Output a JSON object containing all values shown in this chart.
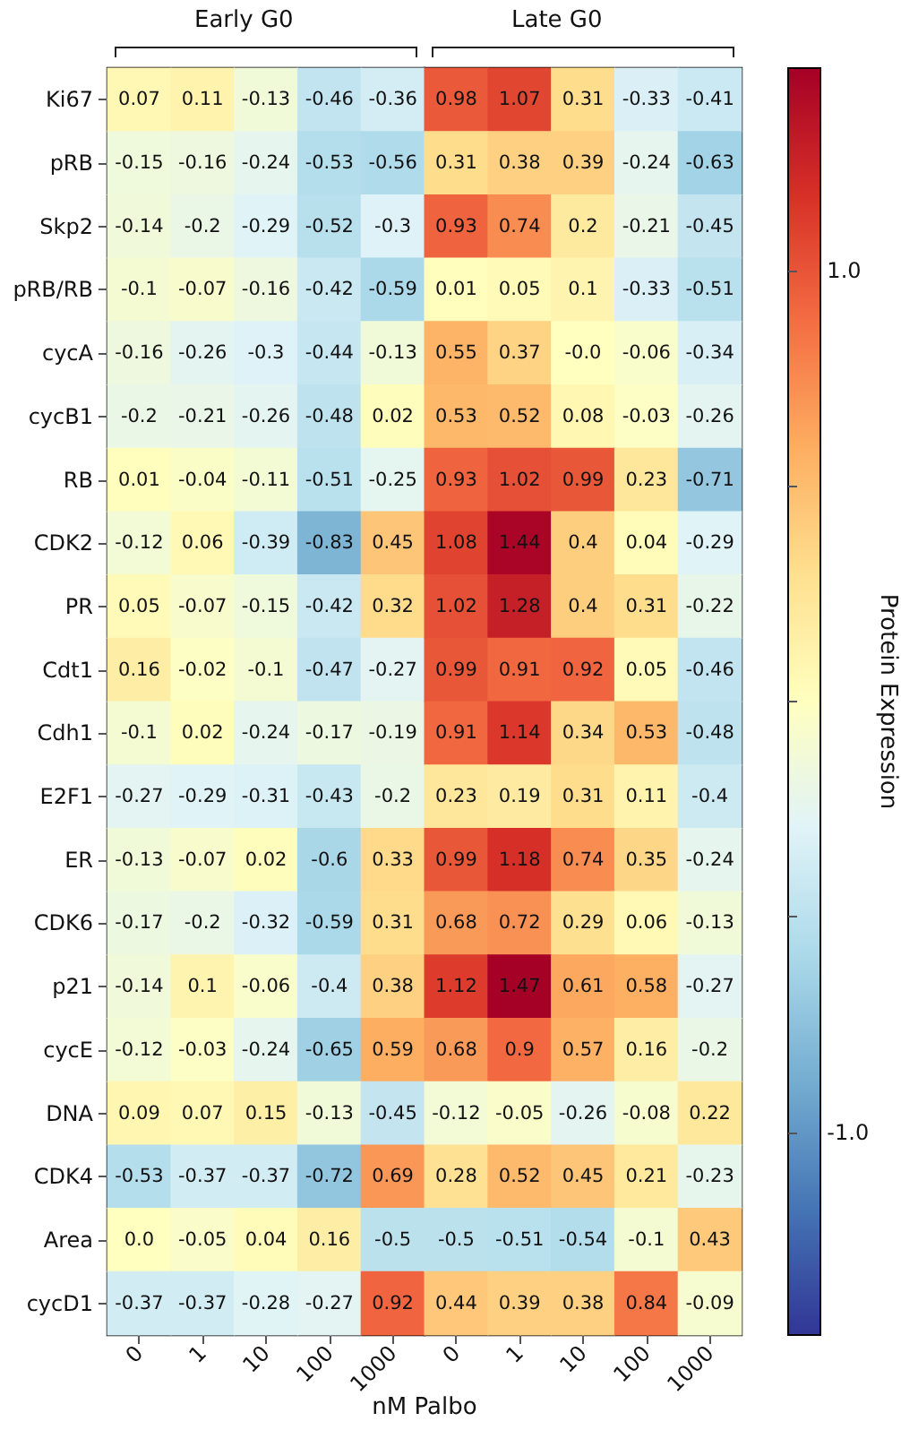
{
  "chart_data": {
    "type": "heatmap",
    "xlabel": "nM Palbo",
    "clabel": "Protein Expression",
    "annotations": [
      "Early G0",
      "Late G0"
    ],
    "categories": [
      "0",
      "1",
      "10",
      "100",
      "1000",
      "0",
      "1",
      "10",
      "100",
      "1000"
    ],
    "y_categories": [
      "Ki67",
      "pRB",
      "Skp2",
      "pRB/RB",
      "cycA",
      "cycB1",
      "RB",
      "CDK2",
      "PR",
      "Cdt1",
      "Cdh1",
      "E2F1",
      "ER",
      "CDK6",
      "p21",
      "cycE",
      "DNA",
      "CDK4",
      "Area",
      "cycD1"
    ],
    "cells": [
      [
        0.07,
        0.11,
        -0.13,
        -0.46,
        -0.36,
        0.98,
        1.07,
        0.31,
        -0.33,
        -0.41
      ],
      [
        -0.15,
        -0.16,
        -0.24,
        -0.53,
        -0.56,
        0.31,
        0.38,
        0.39,
        -0.24,
        -0.63
      ],
      [
        -0.14,
        -0.2,
        -0.29,
        -0.52,
        -0.3,
        0.93,
        0.74,
        0.2,
        -0.21,
        -0.45
      ],
      [
        -0.1,
        -0.07,
        -0.16,
        -0.42,
        -0.59,
        0.01,
        0.05,
        0.1,
        -0.33,
        -0.51
      ],
      [
        -0.16,
        -0.26,
        -0.3,
        -0.44,
        -0.13,
        0.55,
        0.37,
        0.0,
        -0.06,
        -0.34
      ],
      [
        -0.2,
        -0.21,
        -0.26,
        -0.48,
        0.02,
        0.53,
        0.52,
        0.08,
        -0.03,
        -0.26
      ],
      [
        0.01,
        -0.04,
        -0.11,
        -0.51,
        -0.25,
        0.93,
        1.02,
        0.99,
        0.23,
        -0.71
      ],
      [
        -0.12,
        0.06,
        -0.39,
        -0.83,
        0.45,
        1.08,
        1.44,
        0.4,
        0.04,
        -0.29
      ],
      [
        0.05,
        -0.07,
        -0.15,
        -0.42,
        0.32,
        1.02,
        1.28,
        0.4,
        0.31,
        -0.22
      ],
      [
        0.16,
        -0.02,
        -0.1,
        -0.47,
        -0.27,
        0.99,
        0.91,
        0.92,
        0.05,
        -0.46
      ],
      [
        -0.1,
        0.02,
        -0.24,
        -0.17,
        -0.19,
        0.91,
        1.14,
        0.34,
        0.53,
        -0.48
      ],
      [
        -0.27,
        -0.29,
        -0.31,
        -0.43,
        -0.2,
        0.23,
        0.19,
        0.31,
        0.11,
        -0.4
      ],
      [
        -0.13,
        -0.07,
        0.02,
        -0.6,
        0.33,
        0.99,
        1.18,
        0.74,
        0.35,
        -0.24
      ],
      [
        -0.17,
        -0.2,
        -0.32,
        -0.59,
        0.31,
        0.68,
        0.72,
        0.29,
        0.06,
        -0.13
      ],
      [
        -0.14,
        0.1,
        -0.06,
        -0.4,
        0.38,
        1.12,
        1.47,
        0.61,
        0.58,
        -0.27
      ],
      [
        -0.12,
        -0.03,
        -0.24,
        -0.65,
        0.59,
        0.68,
        0.9,
        0.57,
        0.16,
        -0.2
      ],
      [
        0.09,
        0.07,
        0.15,
        -0.13,
        -0.45,
        -0.12,
        -0.05,
        -0.26,
        -0.08,
        0.22
      ],
      [
        -0.53,
        -0.37,
        -0.37,
        -0.72,
        0.69,
        0.28,
        0.52,
        0.45,
        0.21,
        -0.23
      ],
      [
        0.0,
        -0.05,
        0.04,
        0.16,
        -0.5,
        -0.5,
        -0.51,
        -0.54,
        -0.1,
        0.43
      ],
      [
        -0.37,
        -0.37,
        -0.28,
        -0.27,
        0.92,
        0.44,
        0.39,
        0.38,
        0.84,
        -0.09
      ]
    ],
    "cell_labels": [
      [
        "0.07",
        "0.11",
        "-0.13",
        "-0.46",
        "-0.36",
        "0.98",
        "1.07",
        "0.31",
        "-0.33",
        "-0.41"
      ],
      [
        "-0.15",
        "-0.16",
        "-0.24",
        "-0.53",
        "-0.56",
        "0.31",
        "0.38",
        "0.39",
        "-0.24",
        "-0.63"
      ],
      [
        "-0.14",
        "-0.2",
        "-0.29",
        "-0.52",
        "-0.3",
        "0.93",
        "0.74",
        "0.2",
        "-0.21",
        "-0.45"
      ],
      [
        "-0.1",
        "-0.07",
        "-0.16",
        "-0.42",
        "-0.59",
        "0.01",
        "0.05",
        "0.1",
        "-0.33",
        "-0.51"
      ],
      [
        "-0.16",
        "-0.26",
        "-0.3",
        "-0.44",
        "-0.13",
        "0.55",
        "0.37",
        "-0.0",
        "-0.06",
        "-0.34"
      ],
      [
        "-0.2",
        "-0.21",
        "-0.26",
        "-0.48",
        "0.02",
        "0.53",
        "0.52",
        "0.08",
        "-0.03",
        "-0.26"
      ],
      [
        "0.01",
        "-0.04",
        "-0.11",
        "-0.51",
        "-0.25",
        "0.93",
        "1.02",
        "0.99",
        "0.23",
        "-0.71"
      ],
      [
        "-0.12",
        "0.06",
        "-0.39",
        "-0.83",
        "0.45",
        "1.08",
        "1.44",
        "0.4",
        "0.04",
        "-0.29"
      ],
      [
        "0.05",
        "-0.07",
        "-0.15",
        "-0.42",
        "0.32",
        "1.02",
        "1.28",
        "0.4",
        "0.31",
        "-0.22"
      ],
      [
        "0.16",
        "-0.02",
        "-0.1",
        "-0.47",
        "-0.27",
        "0.99",
        "0.91",
        "0.92",
        "0.05",
        "-0.46"
      ],
      [
        "-0.1",
        "0.02",
        "-0.24",
        "-0.17",
        "-0.19",
        "0.91",
        "1.14",
        "0.34",
        "0.53",
        "-0.48"
      ],
      [
        "-0.27",
        "-0.29",
        "-0.31",
        "-0.43",
        "-0.2",
        "0.23",
        "0.19",
        "0.31",
        "0.11",
        "-0.4"
      ],
      [
        "-0.13",
        "-0.07",
        "0.02",
        "-0.6",
        "0.33",
        "0.99",
        "1.18",
        "0.74",
        "0.35",
        "-0.24"
      ],
      [
        "-0.17",
        "-0.2",
        "-0.32",
        "-0.59",
        "0.31",
        "0.68",
        "0.72",
        "0.29",
        "0.06",
        "-0.13"
      ],
      [
        "-0.14",
        "0.1",
        "-0.06",
        "-0.4",
        "0.38",
        "1.12",
        "1.47",
        "0.61",
        "0.58",
        "-0.27"
      ],
      [
        "-0.12",
        "-0.03",
        "-0.24",
        "-0.65",
        "0.59",
        "0.68",
        "0.9",
        "0.57",
        "0.16",
        "-0.2"
      ],
      [
        "0.09",
        "0.07",
        "0.15",
        "-0.13",
        "-0.45",
        "-0.12",
        "-0.05",
        "-0.26",
        "-0.08",
        "0.22"
      ],
      [
        "-0.53",
        "-0.37",
        "-0.37",
        "-0.72",
        "0.69",
        "0.28",
        "0.52",
        "0.45",
        "0.21",
        "-0.23"
      ],
      [
        "0.0",
        "-0.05",
        "0.04",
        "0.16",
        "-0.5",
        "-0.5",
        "-0.51",
        "-0.54",
        "-0.1",
        "0.43"
      ],
      [
        "-0.37",
        "-0.37",
        "-0.28",
        "-0.27",
        "0.92",
        "0.44",
        "0.39",
        "0.38",
        "0.84",
        "-0.09"
      ]
    ],
    "clim": [
      -1.47,
      1.47
    ],
    "cticks": [
      {
        "value": -1.0,
        "label": "-1.0"
      },
      {
        "value": -0.5,
        "label": null
      },
      {
        "value": 0,
        "label": null
      },
      {
        "value": 0.5,
        "label": null
      },
      {
        "value": 1.0,
        "label": "1.0"
      }
    ]
  }
}
